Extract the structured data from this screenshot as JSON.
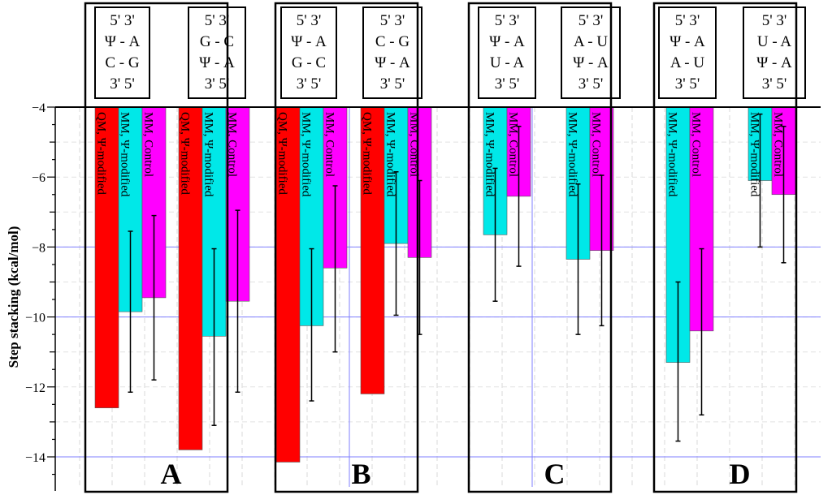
{
  "chart_data": {
    "type": "bar",
    "ylabel": "Step stacking (kcal/mol)",
    "ylim": [
      -14.5,
      -4
    ],
    "yticks": [
      -4,
      -6,
      -8,
      -10,
      -12,
      -14
    ],
    "ytick_labels": [
      "−4",
      "−6",
      "−8",
      "−10",
      "−12",
      "−14"
    ],
    "colors": {
      "QM, Ψ-modified": "#ff0000",
      "MM, Ψ-modified": "#00e8e8",
      "MM, Control": "#ff00ff"
    },
    "grid": true,
    "panels": [
      {
        "label": "A",
        "groups": [
          {
            "sequence": [
              "5'   3'",
              "Ψ - A",
              "C - G",
              "3'   5'"
            ],
            "bars": [
              {
                "series": "QM, Ψ-modified",
                "value": -12.6
              },
              {
                "series": "MM, Ψ-modified",
                "value": -9.85,
                "err_low": -12.15,
                "err_high": -7.55
              },
              {
                "series": "MM, Control",
                "value": -9.45,
                "err_low": -11.8,
                "err_high": -7.1
              }
            ]
          },
          {
            "sequence": [
              "5'   3'",
              "G - C",
              "Ψ - A",
              "3'   5'"
            ],
            "bars": [
              {
                "series": "QM, Ψ-modified",
                "value": -13.8
              },
              {
                "series": "MM, Ψ-modified",
                "value": -10.55,
                "err_low": -13.1,
                "err_high": -8.05
              },
              {
                "series": "MM, Control",
                "value": -9.55,
                "err_low": -12.15,
                "err_high": -6.95
              }
            ]
          }
        ]
      },
      {
        "label": "B",
        "groups": [
          {
            "sequence": [
              "5'   3'",
              "Ψ - A",
              "G - C",
              "3'   5'"
            ],
            "bars": [
              {
                "series": "QM, Ψ-modified",
                "value": -14.15
              },
              {
                "series": "MM, Ψ-modified",
                "value": -10.25,
                "err_low": -12.4,
                "err_high": -8.05
              },
              {
                "series": "MM, Control",
                "value": -8.6,
                "err_low": -11.0,
                "err_high": -6.25
              }
            ]
          },
          {
            "sequence": [
              "5'   3'",
              "C - G",
              "Ψ - A",
              "3'   5'"
            ],
            "bars": [
              {
                "series": "QM, Ψ-modified",
                "value": -12.2
              },
              {
                "series": "MM, Ψ-modified",
                "value": -7.9,
                "err_low": -9.95,
                "err_high": -5.85
              },
              {
                "series": "MM, Control",
                "value": -8.3,
                "err_low": -10.5,
                "err_high": -6.1
              }
            ]
          }
        ]
      },
      {
        "label": "C",
        "groups": [
          {
            "sequence": [
              "5'   3'",
              "Ψ - A",
              "U - A",
              "3'   5'"
            ],
            "bars": [
              {
                "series": "MM, Ψ-modified",
                "value": -7.65,
                "err_low": -9.55,
                "err_high": -5.75
              },
              {
                "series": "MM, Control",
                "value": -6.55,
                "err_low": -8.55,
                "err_high": -4.55
              }
            ]
          },
          {
            "sequence": [
              "5'   3'",
              "A - U",
              "Ψ - A",
              "3'   5'"
            ],
            "bars": [
              {
                "series": "MM, Ψ-modified",
                "value": -8.35,
                "err_low": -10.5,
                "err_high": -6.2
              },
              {
                "series": "MM, Control",
                "value": -8.1,
                "err_low": -10.25,
                "err_high": -5.95
              }
            ]
          }
        ]
      },
      {
        "label": "D",
        "groups": [
          {
            "sequence": [
              "5'   3'",
              "Ψ - A",
              "A - U",
              "3'   5'"
            ],
            "bars": [
              {
                "series": "MM, Ψ-modified",
                "value": -11.3,
                "err_low": -13.55,
                "err_high": -9.0
              },
              {
                "series": "MM, Control",
                "value": -10.4,
                "err_low": -12.8,
                "err_high": -8.05
              }
            ]
          },
          {
            "sequence": [
              "5'   3'",
              "U - A",
              "Ψ - A",
              "3'   5'"
            ],
            "bars": [
              {
                "series": "MM, Ψ-modified",
                "value": -6.1,
                "err_low": -8.0,
                "err_high": -4.2
              },
              {
                "series": "MM, Control",
                "value": -6.5,
                "err_low": -8.45,
                "err_high": -4.55
              }
            ]
          }
        ]
      }
    ]
  }
}
